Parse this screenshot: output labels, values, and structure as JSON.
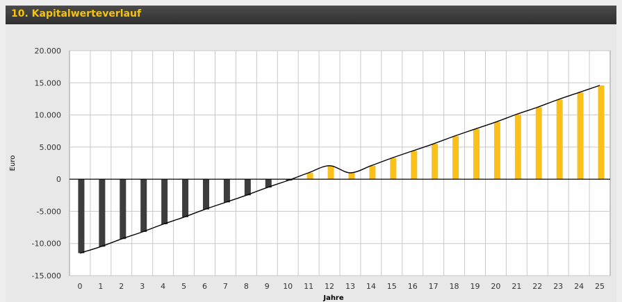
{
  "header": {
    "title": "10. Kapitalwerteverlauf"
  },
  "colors": {
    "header_bg": "#3a3a3a",
    "title": "#f5c20c",
    "negative_bar": "#3d3d3d",
    "positive_bar": "#fbc11a",
    "line": "#000000",
    "grid": "#c8c8c8"
  },
  "chart_data": {
    "type": "bar",
    "title": "",
    "xlabel": "Jahre",
    "ylabel": "Euro",
    "ylim": [
      -15000,
      20000
    ],
    "yticks": [
      20000,
      15000,
      10000,
      5000,
      0,
      -5000,
      -10000,
      -15000
    ],
    "ytick_labels": [
      "20.000",
      "15.000",
      "10.000",
      "5.000",
      "0",
      "-5.000",
      "-10.000",
      "-15.000"
    ],
    "categories": [
      "0",
      "1",
      "2",
      "3",
      "4",
      "5",
      "6",
      "7",
      "8",
      "9",
      "10",
      "11",
      "12",
      "13",
      "14",
      "15",
      "16",
      "17",
      "18",
      "19",
      "20",
      "21",
      "22",
      "23",
      "24",
      "25"
    ],
    "values": [
      -11500,
      -10500,
      -9300,
      -8200,
      -7000,
      -5900,
      -4700,
      -3600,
      -2500,
      -1300,
      -200,
      1000,
      2100,
      1000,
      2100,
      3300,
      4400,
      5500,
      6700,
      7800,
      8900,
      10100,
      11200,
      12400,
      13500,
      14600
    ],
    "line": [
      -11500,
      -10500,
      -9300,
      -8200,
      -7000,
      -5900,
      -4700,
      -3600,
      -2500,
      -1300,
      -200,
      1000,
      2100,
      1000,
      2100,
      3300,
      4400,
      5500,
      6700,
      7800,
      8900,
      10100,
      11200,
      12400,
      13500,
      14600
    ],
    "grid": true,
    "legend": "none"
  }
}
